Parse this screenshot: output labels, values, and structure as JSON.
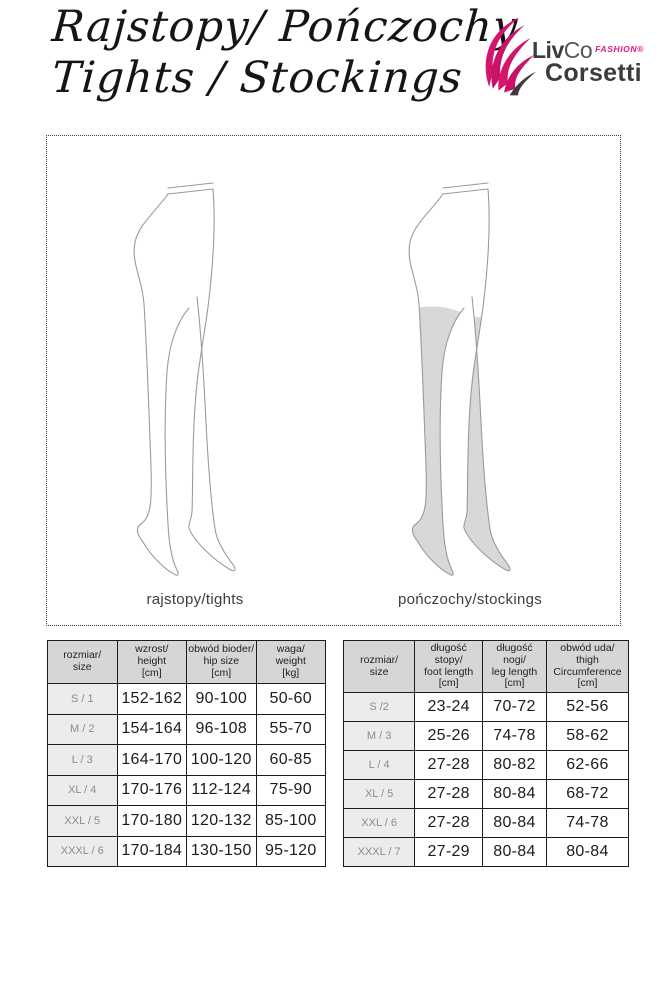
{
  "header": {
    "title_line1": "Rajstopy/ Pończochy",
    "title_line2": "Tights / Stockings",
    "logo": {
      "liv": "Liv",
      "co": "Co",
      "fashion": "FASHION®",
      "corsetti": "Corsetti",
      "accent_color": "#d4156e",
      "text_color": "#3c3c3c"
    }
  },
  "figures": {
    "tights_caption": "rajstopy/tights",
    "stockings_caption": "pończochy/stockings",
    "outline_color": "#9a9a9a",
    "stocking_fill_color": "#d8d8d8"
  },
  "tables": [
    {
      "id": "tights",
      "headers": [
        "rozmiar/\nsize",
        "wzrost/\nheight\n[cm]",
        "obwód bioder/\nhip size\n[cm]",
        "waga/\nweight\n[kg]"
      ],
      "rows": [
        [
          "S / 1",
          "152-162",
          "90-100",
          "50-60"
        ],
        [
          "M / 2",
          "154-164",
          "96-108",
          "55-70"
        ],
        [
          "L / 3",
          "164-170",
          "100-120",
          "60-85"
        ],
        [
          "XL / 4",
          "170-176",
          "112-124",
          "75-90"
        ],
        [
          "XXL / 5",
          "170-180",
          "120-132",
          "85-100"
        ],
        [
          "XXXL / 6",
          "170-184",
          "130-150",
          "95-120"
        ]
      ]
    },
    {
      "id": "stockings",
      "headers": [
        "rozmiar/\nsize",
        "długość stopy/\nfoot length\n[cm]",
        "długość nogi/\nleg length\n[cm]",
        "obwód uda/\nthigh\nCircumference\n[cm]"
      ],
      "rows": [
        [
          "S /2",
          "23-24",
          "70-72",
          "52-56"
        ],
        [
          "M / 3",
          "25-26",
          "74-78",
          "58-62"
        ],
        [
          "L / 4",
          "27-28",
          "80-82",
          "62-66"
        ],
        [
          "XL / 5",
          "27-28",
          "80-84",
          "68-72"
        ],
        [
          "XXL / 6",
          "27-28",
          "80-84",
          "74-78"
        ],
        [
          "XXXL / 7",
          "27-29",
          "80-84",
          "80-84"
        ]
      ]
    }
  ]
}
